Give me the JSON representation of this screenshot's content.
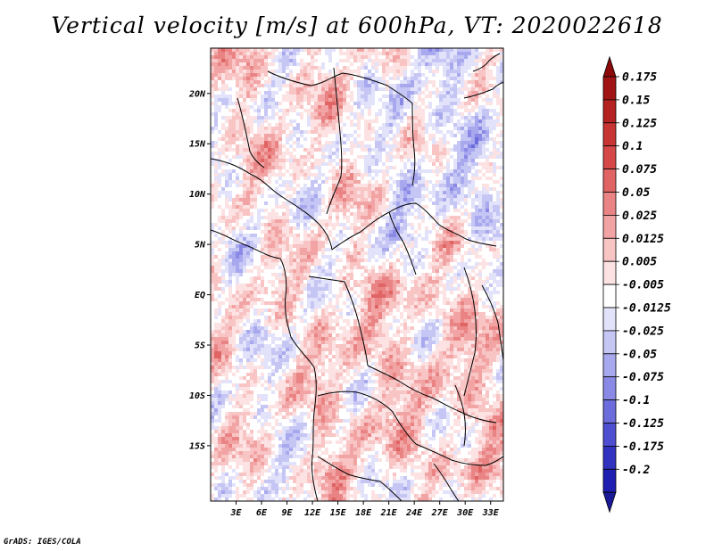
{
  "title": "Vertical velocity [m/s] at 600hPa, VT: 2020022618",
  "footer": "GrADS: IGES/COLA",
  "chart_data": {
    "type": "heatmap",
    "title": "Vertical velocity [m/s] at 600hPa, VT: 2020022618",
    "variable": "Vertical velocity",
    "units": "m/s",
    "level": "600hPa",
    "valid_time": "2020022618",
    "x_range_deg": [
      0,
      34.5
    ],
    "y_range_deg": [
      -20.5,
      24.5
    ],
    "x_ticks": [
      {
        "value": 3,
        "label": "3E"
      },
      {
        "value": 6,
        "label": "6E"
      },
      {
        "value": 9,
        "label": "9E"
      },
      {
        "value": 12,
        "label": "12E"
      },
      {
        "value": 15,
        "label": "15E"
      },
      {
        "value": 18,
        "label": "18E"
      },
      {
        "value": 21,
        "label": "21E"
      },
      {
        "value": 24,
        "label": "24E"
      },
      {
        "value": 27,
        "label": "27E"
      },
      {
        "value": 30,
        "label": "30E"
      },
      {
        "value": 33,
        "label": "33E"
      }
    ],
    "y_ticks": [
      {
        "value": 20,
        "label": "20N"
      },
      {
        "value": 15,
        "label": "15N"
      },
      {
        "value": 10,
        "label": "10N"
      },
      {
        "value": 5,
        "label": "5N"
      },
      {
        "value": 0,
        "label": "EQ"
      },
      {
        "value": -5,
        "label": "5S"
      },
      {
        "value": -10,
        "label": "10S"
      },
      {
        "value": -15,
        "label": "15S"
      }
    ],
    "colorbar": {
      "levels": [
        {
          "label": "0.175",
          "color": "#a01414"
        },
        {
          "label": "0.15",
          "color": "#b42222"
        },
        {
          "label": "0.125",
          "color": "#c83434"
        },
        {
          "label": "0.1",
          "color": "#d64848"
        },
        {
          "label": "0.075",
          "color": "#e06464"
        },
        {
          "label": "0.05",
          "color": "#ea8484"
        },
        {
          "label": "0.025",
          "color": "#f2a4a4"
        },
        {
          "label": "0.0125",
          "color": "#f8c4c4"
        },
        {
          "label": "0.005",
          "color": "#fce2e2"
        },
        {
          "label": "-0.005",
          "color": "#ffffff"
        },
        {
          "label": "-0.0125",
          "color": "#e2e2fa"
        },
        {
          "label": "-0.025",
          "color": "#c6c6f4"
        },
        {
          "label": "-0.05",
          "color": "#a8a8ee"
        },
        {
          "label": "-0.075",
          "color": "#8a8ae6"
        },
        {
          "label": "-0.1",
          "color": "#6c6cdc"
        },
        {
          "label": "-0.125",
          "color": "#4e4ed0"
        },
        {
          "label": "-0.175",
          "color": "#3232c0"
        },
        {
          "label": "-0.2",
          "color": "#1e1eb0"
        }
      ],
      "top_cap_color": "#8c0a0a",
      "bottom_cap_color": "#1a1a96"
    }
  }
}
